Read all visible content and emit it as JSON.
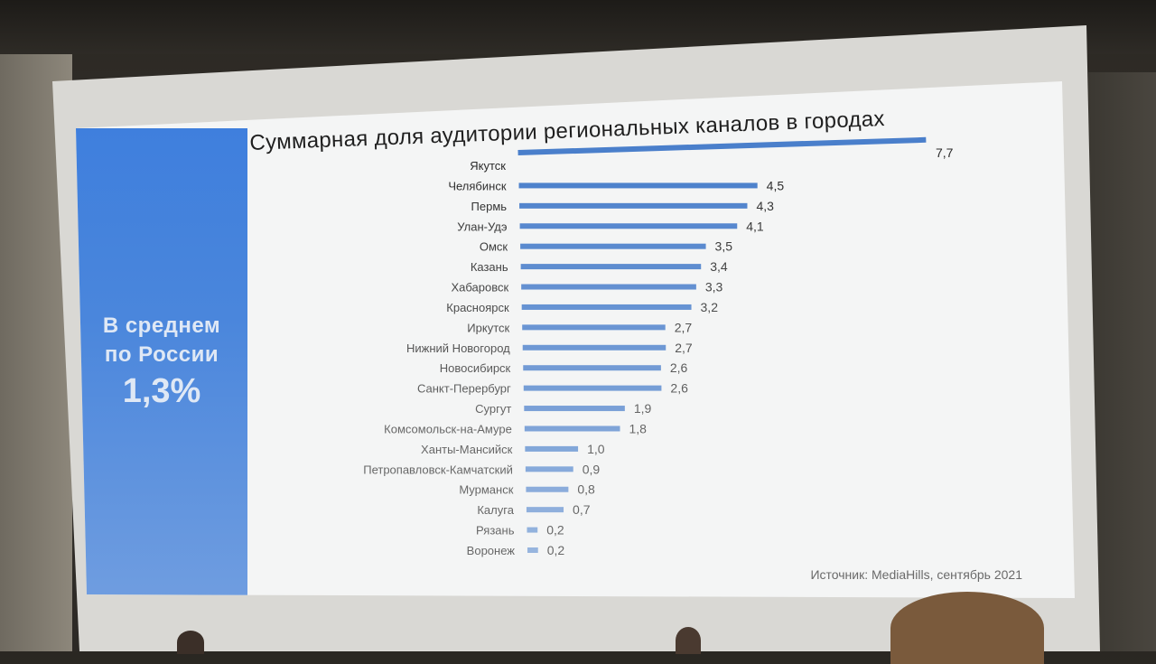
{
  "slide": {
    "title": "Суммарная доля аудитории региональных каналов в городах",
    "side_line1": "В среднем",
    "side_line2": "по России",
    "side_value": "1,3%",
    "source": "Источник: MediaHills, сентябрь 2021"
  },
  "chart_data": {
    "type": "bar",
    "orientation": "horizontal",
    "title": "Суммарная доля аудитории региональных каналов в городах",
    "categories": [
      "Якутск",
      "Челябинск",
      "Пермь",
      "Улан-Удэ",
      "Омск",
      "Казань",
      "Хабаровск",
      "Красноярск",
      "Иркутск",
      "Нижний Новогород",
      "Новосибирск",
      "Санкт-Перербург",
      "Сургут",
      "Комсомольск-на-Амуре",
      "Ханты-Мансийск",
      "Петропавловск-Камчатский",
      "Мурманск",
      "Калуга",
      "Рязань",
      "Воронеж"
    ],
    "values": [
      7.7,
      4.5,
      4.3,
      4.1,
      3.5,
      3.4,
      3.3,
      3.2,
      2.7,
      2.7,
      2.6,
      2.6,
      1.9,
      1.8,
      1.0,
      0.9,
      0.8,
      0.7,
      0.2,
      0.2
    ],
    "value_labels": [
      "7,7",
      "4,5",
      "4,3",
      "4,1",
      "3,5",
      "3,4",
      "3,3",
      "3,2",
      "2,7",
      "2,7",
      "2,6",
      "2,6",
      "1,9",
      "1,8",
      "1,0",
      "0,9",
      "0,8",
      "0,7",
      "0,2",
      "0,2"
    ],
    "color": "#4a7fcb",
    "grid": false,
    "legend": "none"
  }
}
